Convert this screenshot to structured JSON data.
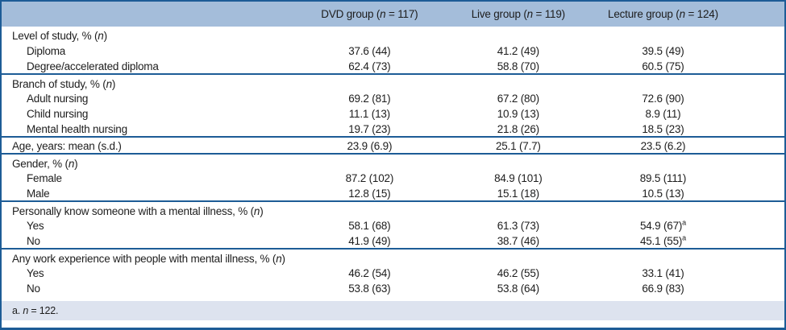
{
  "colors": {
    "frame_border": "#1d5c96",
    "header_band": "#a4bdda",
    "footnote_band": "#dde3ef",
    "text": "#1d1d1d",
    "body_bg": "#ffffff"
  },
  "table": {
    "columns": [
      {
        "prefix": "DVD group (",
        "italic": "n",
        "suffix": " = 117)"
      },
      {
        "prefix": "Live group (",
        "italic": "n",
        "suffix": " = 119)"
      },
      {
        "prefix": "Lecture group (",
        "italic": "n",
        "suffix": " = 124)"
      }
    ],
    "sections": [
      {
        "header": {
          "pre": "Level of study, % (",
          "it": "n",
          "post": ")"
        },
        "header_values": null,
        "rows": [
          {
            "label": "Diploma",
            "values": [
              "37.6 (44)",
              "41.2 (49)",
              "39.5 (49)"
            ]
          },
          {
            "label": "Degree/accelerated diploma",
            "values": [
              "62.4 (73)",
              "58.8 (70)",
              "60.5 (75)"
            ]
          }
        ]
      },
      {
        "header": {
          "pre": "Branch of study, % (",
          "it": "n",
          "post": ")"
        },
        "header_values": null,
        "rows": [
          {
            "label": "Adult nursing",
            "values": [
              "69.2 (81)",
              "67.2 (80)",
              "72.6 (90)"
            ]
          },
          {
            "label": "Child nursing",
            "values": [
              "11.1 (13)",
              "10.9 (13)",
              "8.9 (11)"
            ]
          },
          {
            "label": "Mental health nursing",
            "values": [
              "19.7 (23)",
              "21.8 (26)",
              "18.5 (23)"
            ]
          }
        ]
      },
      {
        "header": {
          "pre": "Age, years: mean (s.d.)",
          "it": "",
          "post": ""
        },
        "header_values": [
          "23.9 (6.9)",
          "25.1 (7.7)",
          "23.5 (6.2)"
        ],
        "rows": []
      },
      {
        "header": {
          "pre": "Gender, % (",
          "it": "n",
          "post": ")"
        },
        "header_values": null,
        "rows": [
          {
            "label": "Female",
            "values": [
              "87.2 (102)",
              "84.9 (101)",
              "89.5 (111)"
            ]
          },
          {
            "label": "Male",
            "values": [
              "12.8 (15)",
              "15.1 (18)",
              "10.5 (13)"
            ]
          }
        ]
      },
      {
        "header": {
          "pre": "Personally know someone with a mental illness, % (",
          "it": "n",
          "post": ")"
        },
        "header_values": null,
        "rows": [
          {
            "label": "Yes",
            "values": [
              "58.1 (68)",
              "61.3 (73)",
              {
                "v": "54.9 (67)",
                "sup": "a"
              }
            ]
          },
          {
            "label": "No",
            "values": [
              "41.9 (49)",
              "38.7 (46)",
              {
                "v": "45.1 (55)",
                "sup": "a"
              }
            ]
          }
        ]
      },
      {
        "header": {
          "pre": "Any work experience with people with mental illness, % (",
          "it": "n",
          "post": ")"
        },
        "header_values": null,
        "rows": [
          {
            "label": "Yes",
            "values": [
              "46.2 (54)",
              "46.2 (55)",
              "33.1 (41)"
            ]
          },
          {
            "label": "No",
            "values": [
              "53.8 (63)",
              "53.8 (64)",
              "66.9 (83)"
            ]
          }
        ]
      }
    ],
    "footnote": {
      "pre": "a. ",
      "it": "n",
      "post": " = 122."
    }
  }
}
